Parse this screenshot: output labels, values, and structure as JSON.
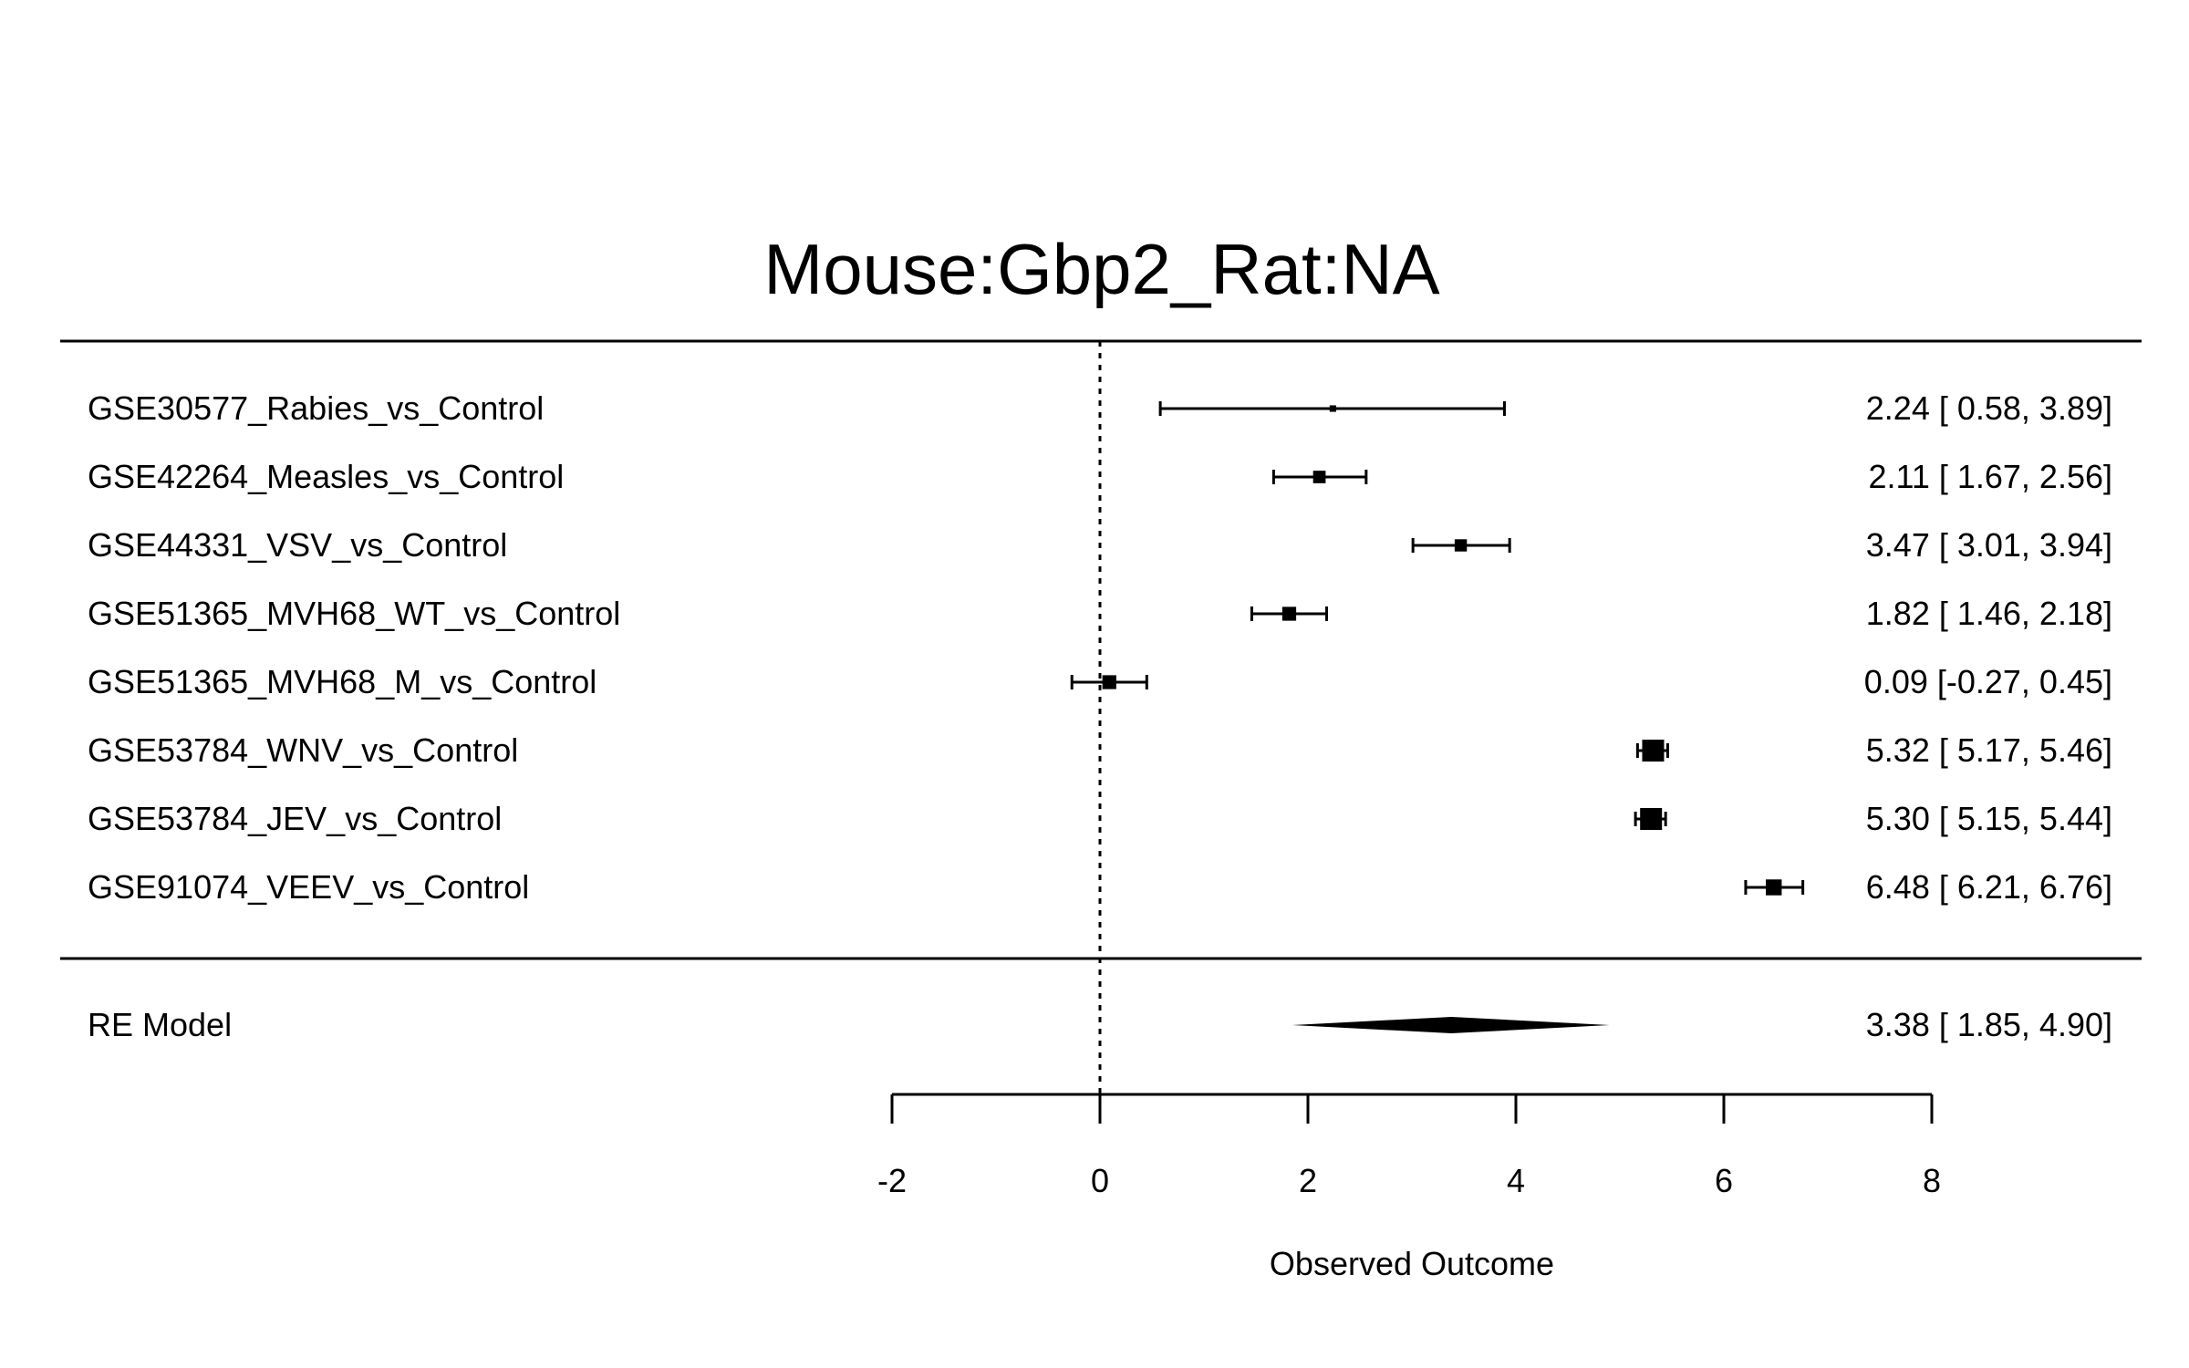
{
  "chart_data": {
    "type": "forest",
    "title": "Mouse:Gbp2_Rat:NA",
    "xlabel": "Observed Outcome",
    "xlim": [
      -2,
      8
    ],
    "xticks": [
      -2,
      0,
      2,
      4,
      6,
      8
    ],
    "reference_line": 0,
    "studies": [
      {
        "label": "GSE30577_Rabies_vs_Control",
        "estimate": 2.24,
        "lower": 0.58,
        "upper": 3.89,
        "text": "2.24 [ 0.58, 3.89]"
      },
      {
        "label": "GSE42264_Measles_vs_Control",
        "estimate": 2.11,
        "lower": 1.67,
        "upper": 2.56,
        "text": "2.11 [ 1.67, 2.56]"
      },
      {
        "label": "GSE44331_VSV_vs_Control",
        "estimate": 3.47,
        "lower": 3.01,
        "upper": 3.94,
        "text": "3.47 [ 3.01, 3.94]"
      },
      {
        "label": "GSE51365_MVH68_WT_vs_Control",
        "estimate": 1.82,
        "lower": 1.46,
        "upper": 2.18,
        "text": "1.82 [ 1.46, 2.18]"
      },
      {
        "label": "GSE51365_MVH68_M_vs_Control",
        "estimate": 0.09,
        "lower": -0.27,
        "upper": 0.45,
        "text": "0.09 [-0.27, 0.45]"
      },
      {
        "label": "GSE53784_WNV_vs_Control",
        "estimate": 5.32,
        "lower": 5.17,
        "upper": 5.46,
        "text": "5.32 [ 5.17, 5.46]"
      },
      {
        "label": "GSE53784_JEV_vs_Control",
        "estimate": 5.3,
        "lower": 5.15,
        "upper": 5.44,
        "text": "5.30 [ 5.15, 5.44]"
      },
      {
        "label": "GSE91074_VEEV_vs_Control",
        "estimate": 6.48,
        "lower": 6.21,
        "upper": 6.76,
        "text": "6.48 [ 6.21, 6.76]"
      }
    ],
    "summary": {
      "label": "RE Model",
      "estimate": 3.38,
      "lower": 1.85,
      "upper": 4.9,
      "text": "3.38 [ 1.85, 4.90]"
    }
  }
}
